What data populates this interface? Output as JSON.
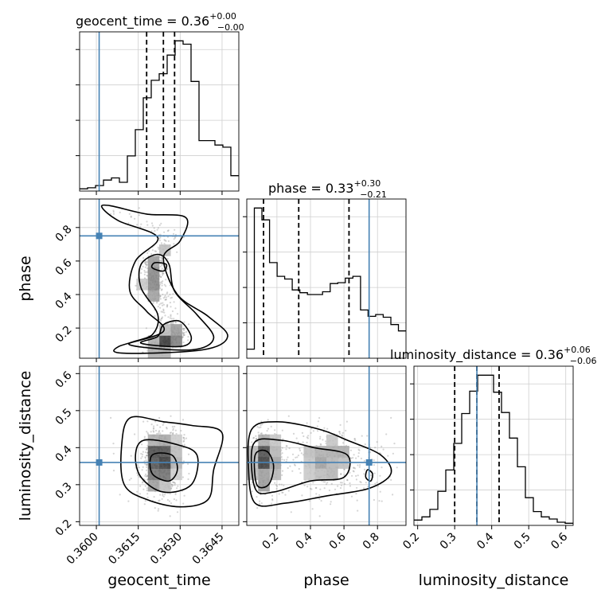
{
  "chart_data": {
    "type": "scatter",
    "subtype": "corner-plot",
    "parameters": [
      {
        "key": "geocent_time",
        "label": "geocent_time",
        "range": [
          0.3594,
          0.3651
        ],
        "ticks": [
          0.36,
          0.3615,
          0.363,
          0.3645
        ],
        "tick_labels": [
          "0.3600",
          "0.3615",
          "0.3630",
          "0.3645"
        ],
        "truth": 0.3601,
        "median": 0.3624,
        "lower": 0.3618,
        "upper": 0.3628,
        "title": "geocent_time = 0.36",
        "title_sup": "+0.00",
        "title_sub": "−0.00"
      },
      {
        "key": "phase",
        "label": "phase",
        "range": [
          0.02,
          0.97
        ],
        "ticks": [
          0.2,
          0.4,
          0.6,
          0.8
        ],
        "tick_labels": [
          "0.2",
          "0.4",
          "0.6",
          "0.8"
        ],
        "truth": 0.75,
        "median": 0.33,
        "lower": 0.12,
        "upper": 0.63,
        "title": "phase = 0.33",
        "title_sup": "+0.30",
        "title_sub": "−0.21"
      },
      {
        "key": "luminosity_distance",
        "label": "luminosity_distance",
        "range": [
          0.19,
          0.62
        ],
        "ticks": [
          0.2,
          0.3,
          0.4,
          0.5,
          0.6
        ],
        "tick_labels": [
          "0.2",
          "0.3",
          "0.4",
          "0.5",
          "0.6"
        ],
        "truth": 0.36,
        "median": 0.36,
        "lower": 0.3,
        "upper": 0.42,
        "title": "luminosity_distance = 0.36",
        "title_sup": "+0.06",
        "title_sub": "−0.06"
      }
    ],
    "histograms": {
      "geocent_time": [
        0.2,
        0.3,
        0.5,
        1.0,
        1.2,
        0.8,
        3.2,
        5.6,
        8.5,
        10.1,
        10.7,
        12.4,
        13.7,
        13.4,
        10.0,
        4.6,
        4.6,
        4.2,
        4.0,
        1.4
      ],
      "phase": [
        1,
        16.5,
        15.2,
        10.5,
        9.0,
        8.7,
        7.5,
        7.2,
        7.0,
        7.0,
        7.3,
        8.2,
        8.3,
        8.8,
        9.0,
        5.3,
        4.6,
        4.8,
        4.5,
        3.7,
        3.0
      ],
      "luminosity_distance": [
        0.5,
        0.8,
        1.5,
        3.2,
        5.2,
        7.7,
        10.5,
        12.6,
        14.1,
        14.1,
        12.5,
        10.6,
        8.2,
        5.5,
        2.6,
        1.3,
        0.8,
        0.6,
        0.3,
        0.2
      ]
    },
    "grid": true
  }
}
